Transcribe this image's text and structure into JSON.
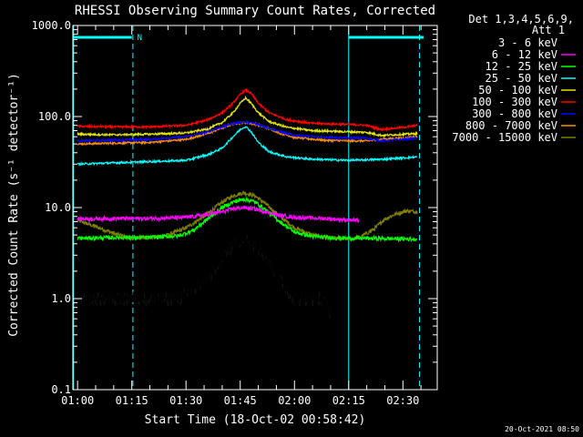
{
  "chart_data": {
    "type": "line",
    "title": "RHESSI Observing Summary Count Rates, Corrected",
    "xlabel": "Start Time (18-Oct-02 00:58:42)",
    "ylabel": "Corrected Count Rate (s⁻¹ detector⁻¹)",
    "ylog": true,
    "ylim": [
      0.1,
      1000.0
    ],
    "xlim_minutes": [
      58.7,
      159.5
    ],
    "y_tick_labels": [
      "0.1",
      "1.0",
      "10.0",
      "100.0",
      "1000.0"
    ],
    "y_tick_values": [
      0.1,
      1.0,
      10.0,
      100.0,
      1000.0
    ],
    "x_tick_labels": [
      "01:00",
      "01:15",
      "01:30",
      "01:45",
      "02:00",
      "02:15",
      "02:30"
    ],
    "x_tick_values": [
      60,
      75,
      90,
      105,
      120,
      135,
      150
    ],
    "legend": {
      "placement": "right",
      "header": [
        "Det 1,3,4,5,6,9,",
        "Att 1"
      ]
    },
    "night_intervals": [
      [
        58.7,
        75.0
      ],
      [
        135.0,
        159.5
      ]
    ],
    "night_label": "N",
    "night_boundaries": [
      58.9,
      75.3,
      135.0,
      154.6
    ],
    "peak_time": 106.5,
    "series": [
      {
        "name": "3 - 6 keV",
        "color": "#000000",
        "points": [
          [
            60,
            1.0
          ],
          [
            72,
            1.0
          ],
          [
            80,
            1.0
          ],
          [
            88,
            1.0
          ],
          [
            96,
            1.6
          ],
          [
            100,
            2.8
          ],
          [
            103,
            4.0
          ],
          [
            106,
            4.6
          ],
          [
            109,
            4.0
          ],
          [
            112,
            3.0
          ],
          [
            116,
            1.6
          ],
          [
            120,
            1.0
          ],
          [
            125,
            1.0
          ],
          [
            128,
            1.0
          ],
          [
            130,
            0.7
          ]
        ]
      },
      {
        "name": "6 - 12 keV",
        "color": "#ff00ff",
        "points": [
          [
            60,
            7.5
          ],
          [
            72,
            7.6
          ],
          [
            80,
            7.6
          ],
          [
            90,
            7.8
          ],
          [
            96,
            8.4
          ],
          [
            100,
            9.0
          ],
          [
            103,
            9.7
          ],
          [
            106,
            10.0
          ],
          [
            109,
            9.7
          ],
          [
            112,
            9.0
          ],
          [
            116,
            8.2
          ],
          [
            120,
            7.8
          ],
          [
            128,
            7.6
          ],
          [
            135,
            7.3
          ],
          [
            138,
            7.2
          ]
        ]
      },
      {
        "name": "12 - 25 keV",
        "color": "#00ff00",
        "points": [
          [
            60,
            4.6
          ],
          [
            72,
            4.7
          ],
          [
            80,
            4.7
          ],
          [
            88,
            4.9
          ],
          [
            92,
            5.6
          ],
          [
            96,
            7.5
          ],
          [
            100,
            10.0
          ],
          [
            103,
            11.5
          ],
          [
            106,
            12.4
          ],
          [
            109,
            11.6
          ],
          [
            112,
            9.5
          ],
          [
            116,
            7.0
          ],
          [
            120,
            5.4
          ],
          [
            125,
            4.8
          ],
          [
            135,
            4.6
          ],
          [
            140,
            4.6
          ],
          [
            154,
            4.5
          ]
        ]
      },
      {
        "name": "25 - 50 keV",
        "color": "#00ffff",
        "points": [
          [
            60,
            30
          ],
          [
            70,
            31
          ],
          [
            80,
            32
          ],
          [
            90,
            33
          ],
          [
            96,
            38
          ],
          [
            100,
            45
          ],
          [
            103,
            60
          ],
          [
            105,
            72
          ],
          [
            106.5,
            78
          ],
          [
            108,
            68
          ],
          [
            110,
            52
          ],
          [
            113,
            41
          ],
          [
            118,
            36
          ],
          [
            125,
            34
          ],
          [
            135,
            33
          ],
          [
            145,
            34
          ],
          [
            154,
            36
          ]
        ]
      },
      {
        "name": "50 - 100 keV",
        "color": "#e6e600",
        "points": [
          [
            60,
            64
          ],
          [
            70,
            63
          ],
          [
            80,
            64
          ],
          [
            90,
            66
          ],
          [
            96,
            73
          ],
          [
            100,
            86
          ],
          [
            103,
            110
          ],
          [
            105,
            140
          ],
          [
            106.5,
            160
          ],
          [
            108,
            140
          ],
          [
            110,
            110
          ],
          [
            113,
            88
          ],
          [
            118,
            76
          ],
          [
            125,
            70
          ],
          [
            135,
            68
          ],
          [
            140,
            67
          ],
          [
            144,
            62
          ],
          [
            154,
            65
          ]
        ]
      },
      {
        "name": "100 - 300 keV",
        "color": "#ff0000",
        "points": [
          [
            60,
            78
          ],
          [
            70,
            77
          ],
          [
            80,
            77
          ],
          [
            90,
            80
          ],
          [
            96,
            92
          ],
          [
            100,
            110
          ],
          [
            103,
            140
          ],
          [
            105,
            175
          ],
          [
            106.5,
            195
          ],
          [
            108,
            180
          ],
          [
            110,
            140
          ],
          [
            113,
            110
          ],
          [
            118,
            92
          ],
          [
            125,
            84
          ],
          [
            135,
            82
          ],
          [
            140,
            80
          ],
          [
            144,
            72
          ],
          [
            150,
            76
          ],
          [
            154,
            80
          ]
        ]
      },
      {
        "name": "300 - 800 keV",
        "color": "#0000ff",
        "points": [
          [
            60,
            54
          ],
          [
            70,
            55
          ],
          [
            80,
            56
          ],
          [
            90,
            60
          ],
          [
            96,
            68
          ],
          [
            100,
            77
          ],
          [
            103,
            84
          ],
          [
            106,
            87
          ],
          [
            109,
            84
          ],
          [
            112,
            77
          ],
          [
            116,
            68
          ],
          [
            120,
            62
          ],
          [
            128,
            59
          ],
          [
            135,
            58
          ],
          [
            140,
            58
          ],
          [
            144,
            54
          ],
          [
            150,
            56
          ],
          [
            154,
            58
          ]
        ]
      },
      {
        "name": "800 - 7000 keV",
        "color": "#ff8c00",
        "points": [
          [
            60,
            50
          ],
          [
            70,
            51
          ],
          [
            80,
            52
          ],
          [
            90,
            56
          ],
          [
            96,
            65
          ],
          [
            100,
            75
          ],
          [
            103,
            83
          ],
          [
            106,
            86
          ],
          [
            109,
            83
          ],
          [
            112,
            76
          ],
          [
            116,
            66
          ],
          [
            120,
            59
          ],
          [
            128,
            55
          ],
          [
            135,
            54
          ],
          [
            140,
            54
          ],
          [
            144,
            56
          ],
          [
            150,
            58
          ],
          [
            154,
            60
          ]
        ]
      },
      {
        "name": "7000 - 15000 keV",
        "color": "#808000",
        "points": [
          [
            60,
            7.2
          ],
          [
            66,
            6.0
          ],
          [
            70,
            5.2
          ],
          [
            75,
            4.6
          ],
          [
            80,
            4.7
          ],
          [
            85,
            5.0
          ],
          [
            90,
            6.0
          ],
          [
            95,
            8.0
          ],
          [
            100,
            11.5
          ],
          [
            103,
            13.5
          ],
          [
            106,
            14.6
          ],
          [
            109,
            13.5
          ],
          [
            112,
            11.0
          ],
          [
            116,
            8.0
          ],
          [
            120,
            6.0
          ],
          [
            125,
            5.0
          ],
          [
            130,
            4.6
          ],
          [
            135,
            4.5
          ],
          [
            138,
            4.7
          ],
          [
            142,
            5.8
          ],
          [
            145,
            7.5
          ],
          [
            148,
            8.5
          ],
          [
            151,
            9.2
          ],
          [
            154,
            9.0
          ]
        ]
      }
    ]
  },
  "footer": {
    "timestamp": "20-Oct-2021 08:50"
  }
}
